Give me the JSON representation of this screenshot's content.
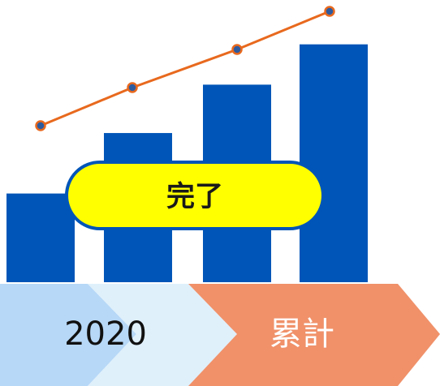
{
  "chart_data": {
    "type": "bar",
    "categories": [
      "",
      "",
      "",
      ""
    ],
    "values": [
      2.2,
      3.7,
      4.9,
      5.9
    ],
    "ylim": [
      0,
      7
    ],
    "line_series": {
      "values": [
        4.5,
        5.8,
        7.1,
        8.4
      ],
      "ylim": [
        3,
        9
      ]
    },
    "grid": false,
    "legend": "none",
    "colors": {
      "bar": "#0055b8",
      "line": "#e8691e",
      "marker_fill": "#2e5a9e",
      "marker_stroke": "#e8691e"
    }
  },
  "badge": {
    "label": "完了",
    "fill": "#ffff00",
    "stroke": "#0055b8",
    "text_color": "#1a1a1a"
  },
  "timeline": {
    "steps": [
      {
        "label": "",
        "fill": "#b7d8f7"
      },
      {
        "label": "2020",
        "fill": "#dff0fb",
        "text_color": "#111111"
      },
      {
        "label": "累計",
        "fill": "#f0916a",
        "text_color": "#ffffff"
      }
    ]
  }
}
